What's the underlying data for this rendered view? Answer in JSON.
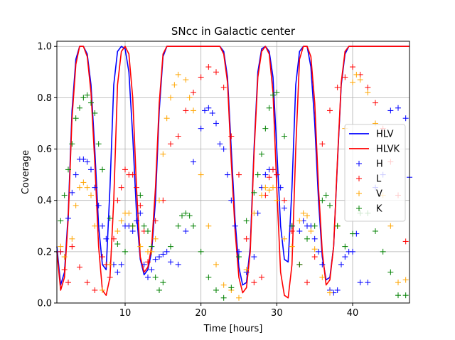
{
  "chart_data": {
    "type": "line",
    "title": "SNcc in Galactic center",
    "xlabel": "Time [hours]",
    "ylabel": "Coverage",
    "xlim": [
      1,
      47.5
    ],
    "ylim": [
      0,
      1.02
    ],
    "x_ticks": [
      10,
      20,
      30,
      40
    ],
    "x_tick_labels": [
      "10",
      "20",
      "30",
      "40"
    ],
    "y_ticks": [
      0.0,
      0.2,
      0.4,
      0.6,
      0.8,
      1.0
    ],
    "y_tick_labels": [
      "0.0",
      "0.2",
      "0.4",
      "0.6",
      "0.8",
      "1.0"
    ],
    "grid": true,
    "legend_position": "center-right",
    "series": [
      {
        "name": "HLV",
        "kind": "line",
        "color": "#0000ff",
        "x": [
          1,
          1.5,
          2,
          2.5,
          3,
          3.5,
          4,
          4.5,
          5,
          5.5,
          6,
          6.5,
          7,
          7.5,
          8,
          8.5,
          9,
          9.5,
          10,
          10.5,
          11,
          11.5,
          12,
          12.5,
          13,
          13.5,
          14,
          14.5,
          15,
          15.5,
          16,
          16.5,
          17,
          17.5,
          18,
          19,
          20,
          21,
          22,
          22.5,
          23,
          23.5,
          24,
          24.5,
          25,
          25.5,
          26,
          26.5,
          27,
          27.5,
          28,
          28.5,
          29,
          29.5,
          30,
          30.5,
          31,
          31.5,
          32,
          32.5,
          33,
          33.5,
          34,
          34.5,
          35,
          35.5,
          36,
          36.5,
          37,
          37.5,
          38,
          38.5,
          39,
          39.5,
          40,
          40.5,
          41,
          42,
          43,
          44,
          45,
          46,
          47,
          47.5
        ],
        "y": [
          0.22,
          0.07,
          0.12,
          0.35,
          0.75,
          0.95,
          1.0,
          1.0,
          0.97,
          0.85,
          0.6,
          0.3,
          0.15,
          0.13,
          0.45,
          0.85,
          0.98,
          1.0,
          0.99,
          0.9,
          0.65,
          0.35,
          0.17,
          0.11,
          0.13,
          0.2,
          0.4,
          0.75,
          0.96,
          1.0,
          1.0,
          1.0,
          1.0,
          1.0,
          1.0,
          1.0,
          1.0,
          1.0,
          1.0,
          1.0,
          0.98,
          0.88,
          0.6,
          0.32,
          0.14,
          0.07,
          0.08,
          0.22,
          0.6,
          0.9,
          0.99,
          1.0,
          0.98,
          0.88,
          0.6,
          0.3,
          0.17,
          0.16,
          0.45,
          0.85,
          0.98,
          1.0,
          1.0,
          0.92,
          0.7,
          0.4,
          0.18,
          0.09,
          0.1,
          0.22,
          0.55,
          0.85,
          0.97,
          1.0,
          1.0,
          1.0,
          1.0,
          1.0,
          1.0,
          1.0,
          1.0,
          1.0,
          1.0,
          1.0
        ]
      },
      {
        "name": "HLVK",
        "kind": "line",
        "color": "#ff0000",
        "x": [
          1,
          1.5,
          2,
          2.5,
          3,
          3.5,
          4,
          4.5,
          5,
          5.5,
          6,
          6.5,
          7,
          7.5,
          8,
          8.5,
          9,
          9.5,
          10,
          10.5,
          11,
          11.5,
          12,
          12.5,
          13,
          13.5,
          14,
          14.5,
          15,
          15.5,
          16,
          16.5,
          17,
          17.5,
          18,
          19,
          20,
          21,
          22,
          22.5,
          23,
          23.5,
          24,
          24.5,
          25,
          25.5,
          26,
          26.5,
          27,
          27.5,
          28,
          28.5,
          29,
          29.5,
          30,
          30.5,
          31,
          31.5,
          32,
          32.5,
          33,
          33.5,
          34,
          34.5,
          35,
          35.5,
          36,
          36.5,
          37,
          37.5,
          38,
          38.5,
          39,
          39.5,
          40,
          40.5,
          41,
          42,
          43,
          44,
          45,
          46,
          47,
          47.5
        ],
        "y": [
          0.2,
          0.05,
          0.1,
          0.33,
          0.72,
          0.93,
          1.0,
          1.0,
          0.96,
          0.82,
          0.55,
          0.22,
          0.05,
          0.03,
          0.1,
          0.4,
          0.85,
          0.98,
          1.0,
          0.97,
          0.8,
          0.45,
          0.18,
          0.12,
          0.14,
          0.22,
          0.45,
          0.78,
          0.97,
          1.0,
          1.0,
          1.0,
          1.0,
          1.0,
          1.0,
          1.0,
          1.0,
          1.0,
          1.0,
          1.0,
          0.97,
          0.86,
          0.55,
          0.28,
          0.1,
          0.04,
          0.06,
          0.2,
          0.58,
          0.88,
          0.98,
          1.0,
          0.97,
          0.82,
          0.45,
          0.12,
          0.03,
          0.02,
          0.15,
          0.6,
          0.95,
          1.0,
          1.0,
          0.96,
          0.78,
          0.45,
          0.2,
          0.07,
          0.09,
          0.22,
          0.56,
          0.86,
          0.98,
          1.0,
          1.0,
          1.0,
          1.0,
          1.0,
          1.0,
          1.0,
          1.0,
          1.0,
          1.0,
          1.0
        ]
      },
      {
        "name": "H",
        "kind": "marker",
        "color": "#0000ff",
        "x": [
          1.5,
          2.5,
          3,
          3.5,
          4,
          4.5,
          5,
          5.5,
          6,
          6.5,
          7,
          7.5,
          8.5,
          9,
          9.5,
          10,
          10.5,
          11,
          11.5,
          12,
          12.5,
          13,
          13.5,
          14,
          14.5,
          15,
          15.5,
          16,
          17,
          18,
          19,
          20,
          20.5,
          21,
          21.5,
          22,
          22.5,
          23,
          23.5,
          24,
          24.5,
          25,
          26,
          27,
          27.5,
          28,
          28.5,
          29,
          29.5,
          30,
          30.5,
          31,
          32,
          33,
          33.5,
          34,
          34.5,
          35,
          35.5,
          36,
          37,
          37.5,
          38,
          38.5,
          39,
          39.5,
          40,
          40.5,
          41,
          42,
          43,
          44,
          45,
          46,
          47,
          47.5
        ],
        "y": [
          0.2,
          0.33,
          0.43,
          0.5,
          0.56,
          0.56,
          0.55,
          0.52,
          0.45,
          0.38,
          0.3,
          0.25,
          0.15,
          0.12,
          0.15,
          0.3,
          0.3,
          0.28,
          0.32,
          0.35,
          0.15,
          0.1,
          0.13,
          0.17,
          0.18,
          0.19,
          0.2,
          0.16,
          0.15,
          0.28,
          0.55,
          0.68,
          0.75,
          0.76,
          0.74,
          0.7,
          0.62,
          0.6,
          0.5,
          0.4,
          0.3,
          0.2,
          0.12,
          0.18,
          0.35,
          0.45,
          0.5,
          0.52,
          0.52,
          0.5,
          0.45,
          0.37,
          0.3,
          0.28,
          0.32,
          0.3,
          0.3,
          0.25,
          0.2,
          0.15,
          0.05,
          0.04,
          0.05,
          0.15,
          0.18,
          0.2,
          0.2,
          0.27,
          0.08,
          0.08,
          0.45,
          0.5,
          0.75,
          0.76,
          0.72,
          0.49
        ]
      },
      {
        "name": "L",
        "kind": "marker",
        "color": "#ff0000",
        "x": [
          1.5,
          2,
          2.5,
          3,
          4,
          5,
          6,
          7,
          7.5,
          8,
          8.5,
          9,
          9.5,
          10,
          10.5,
          11,
          11.5,
          12,
          12.5,
          13,
          14,
          15,
          16,
          17,
          18,
          19,
          20,
          21,
          22,
          23,
          24,
          25,
          26,
          27,
          28,
          28.5,
          29,
          29.5,
          30,
          31,
          32,
          33,
          34,
          35,
          36,
          37,
          38,
          39,
          40,
          41,
          42,
          43,
          44,
          45,
          46,
          47
        ],
        "y": [
          0.2,
          0.13,
          0.08,
          0.22,
          0.14,
          0.08,
          0.05,
          0.18,
          0.15,
          0.1,
          0.25,
          0.4,
          0.45,
          0.52,
          0.5,
          0.5,
          0.45,
          0.38,
          0.28,
          0.16,
          0.32,
          0.4,
          0.62,
          0.65,
          0.75,
          0.82,
          0.88,
          0.92,
          0.9,
          0.84,
          0.65,
          0.5,
          0.25,
          0.08,
          0.1,
          0.42,
          0.49,
          0.52,
          0.5,
          0.4,
          0.28,
          0.15,
          0.08,
          0.18,
          0.62,
          0.75,
          0.84,
          0.88,
          0.92,
          0.89,
          0.84,
          0.78,
          0.68,
          0.55,
          0.42,
          0.24
        ]
      },
      {
        "name": "V",
        "kind": "marker",
        "color": "#ffa500",
        "x": [
          1.5,
          2,
          3,
          3.5,
          4,
          4.5,
          5,
          5.5,
          6,
          7,
          8,
          9,
          9.5,
          10,
          10.5,
          11,
          12,
          13,
          13.5,
          14,
          14.5,
          15,
          15.5,
          16,
          16.5,
          17,
          18,
          18.5,
          19,
          20,
          21,
          22,
          23,
          24,
          25,
          26,
          27,
          28,
          28.5,
          29,
          29.5,
          30,
          31,
          32,
          33,
          33.5,
          34,
          34.5,
          35,
          36,
          37,
          38,
          39,
          40,
          40.5,
          41,
          42,
          43,
          44,
          45,
          46,
          47
        ],
        "y": [
          0.22,
          0.18,
          0.25,
          0.38,
          0.45,
          0.47,
          0.45,
          0.42,
          0.3,
          0.05,
          0.15,
          0.28,
          0.32,
          0.35,
          0.35,
          0.3,
          0.22,
          0.2,
          0.2,
          0.25,
          0.4,
          0.58,
          0.72,
          0.8,
          0.85,
          0.89,
          0.87,
          0.8,
          0.75,
          0.5,
          0.3,
          0.15,
          0.07,
          0.05,
          0.02,
          0.13,
          0.35,
          0.42,
          0.45,
          0.44,
          0.45,
          0.4,
          0.25,
          0.22,
          0.32,
          0.35,
          0.34,
          0.28,
          0.21,
          0.1,
          0.04,
          0.3,
          0.68,
          0.86,
          0.89,
          0.87,
          0.82,
          0.7,
          0.42,
          0.3,
          0.08,
          0.09
        ]
      },
      {
        "name": "K",
        "kind": "marker",
        "color": "#008000",
        "x": [
          1.5,
          2,
          2.5,
          3,
          3.5,
          4,
          4.5,
          5,
          5.5,
          6,
          6.5,
          7,
          8,
          9,
          10,
          11,
          12,
          12.5,
          13,
          13.5,
          14,
          14.5,
          15,
          16,
          17,
          17.5,
          18,
          18.5,
          19,
          20,
          21,
          22,
          23,
          24,
          25,
          26,
          27,
          27.5,
          28,
          28.5,
          29,
          29.5,
          30,
          31,
          32,
          33,
          34,
          35,
          36,
          36.5,
          37,
          38,
          39,
          40,
          41,
          42,
          43,
          44,
          45,
          46,
          47
        ],
        "y": [
          0.32,
          0.42,
          0.52,
          0.62,
          0.72,
          0.76,
          0.8,
          0.81,
          0.78,
          0.74,
          0.62,
          0.52,
          0.33,
          0.23,
          0.2,
          0.3,
          0.42,
          0.3,
          0.28,
          0.22,
          0.1,
          0.05,
          0.08,
          0.22,
          0.3,
          0.34,
          0.35,
          0.34,
          0.3,
          0.2,
          0.1,
          0.05,
          0.02,
          0.06,
          0.18,
          0.32,
          0.43,
          0.5,
          0.58,
          0.68,
          0.76,
          0.81,
          0.82,
          0.65,
          0.3,
          0.15,
          0.25,
          0.3,
          0.4,
          0.42,
          0.38,
          0.3,
          0.22,
          0.27,
          0.35,
          0.35,
          0.28,
          0.2,
          0.12,
          0.03,
          0.03
        ]
      }
    ]
  }
}
